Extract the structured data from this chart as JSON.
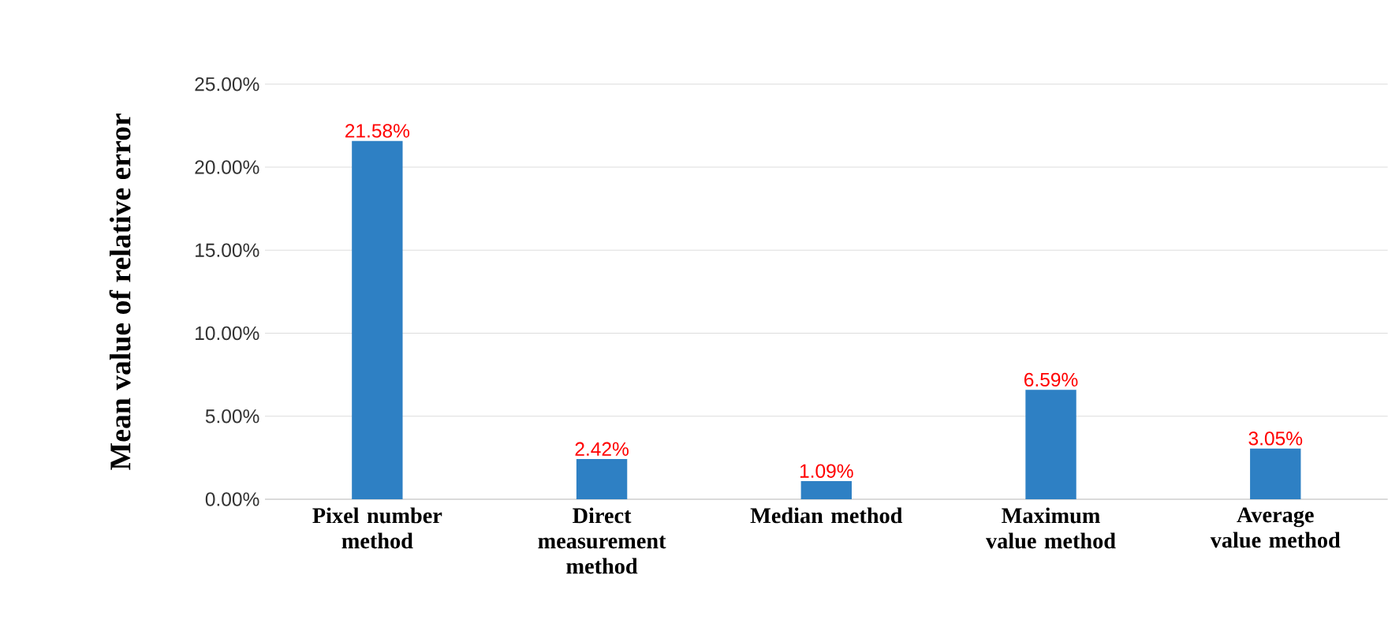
{
  "chart_data": {
    "type": "bar",
    "ylabel": "Mean value of relative error",
    "categories": [
      "Pixel number method",
      "Direct measurement method",
      "Median method",
      "Maximum value method",
      "Average value method"
    ],
    "values": [
      21.58,
      2.42,
      1.09,
      6.59,
      3.05
    ],
    "value_labels": [
      "21.58%",
      "2.42%",
      "1.09%",
      "6.59%",
      "3.05%"
    ],
    "color": "#2e80c4",
    "ylim": [
      0,
      25
    ],
    "yticks": [
      {
        "value": 0,
        "label": "0.00%"
      },
      {
        "value": 5,
        "label": "5.00%"
      },
      {
        "value": 10,
        "label": "10.00%"
      },
      {
        "value": 15,
        "label": "15.00%"
      },
      {
        "value": 20,
        "label": "20.00%"
      },
      {
        "value": 25,
        "label": "25.00%"
      }
    ],
    "grid": "y"
  }
}
